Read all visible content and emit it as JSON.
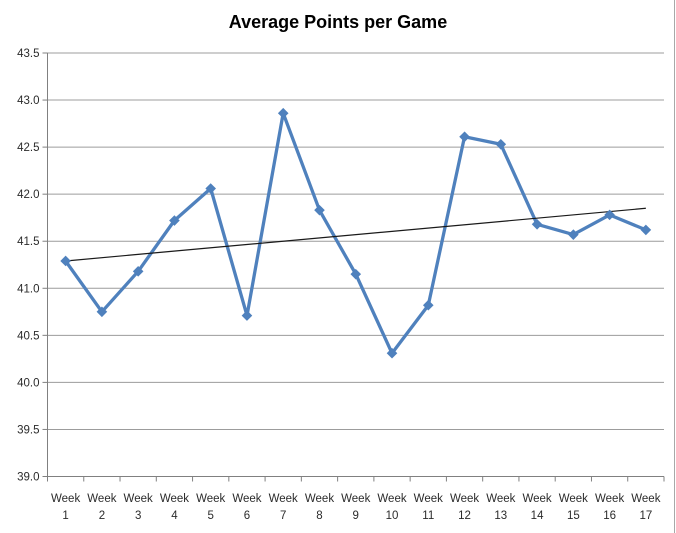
{
  "chart_data": {
    "type": "line",
    "title": "Average Points per Game",
    "categories": [
      "Week 1",
      "Week 2",
      "Week 3",
      "Week 4",
      "Week 5",
      "Week 6",
      "Week 7",
      "Week 8",
      "Week 9",
      "Week 10",
      "Week 11",
      "Week 12",
      "Week 13",
      "Week 14",
      "Week 15",
      "Week 16",
      "Week 17"
    ],
    "series": [
      {
        "name": "Average Points per Game",
        "values": [
          41.29,
          40.75,
          41.18,
          41.72,
          42.06,
          40.71,
          42.86,
          41.83,
          41.15,
          40.31,
          40.82,
          42.61,
          42.53,
          41.68,
          41.57,
          41.78,
          41.62
        ]
      }
    ],
    "trendline": {
      "start_value": 41.29,
      "end_value": 41.85
    },
    "y_ticks": [
      "43.5",
      "43.0",
      "42.5",
      "42.0",
      "41.5",
      "41.0",
      "40.5",
      "40.0",
      "39.5",
      "39.0"
    ],
    "ylim": [
      39.0,
      43.5
    ],
    "y_step": 0.5,
    "xlabel": "",
    "ylabel": "",
    "grid": true,
    "legend_position": "none",
    "colors": {
      "series": "#4F81BD",
      "trendline": "#1a1a1a",
      "gridline": "#9c9c9c",
      "axis": "#808080",
      "tick_label": "#2b2b2b",
      "title": "#000000"
    }
  }
}
